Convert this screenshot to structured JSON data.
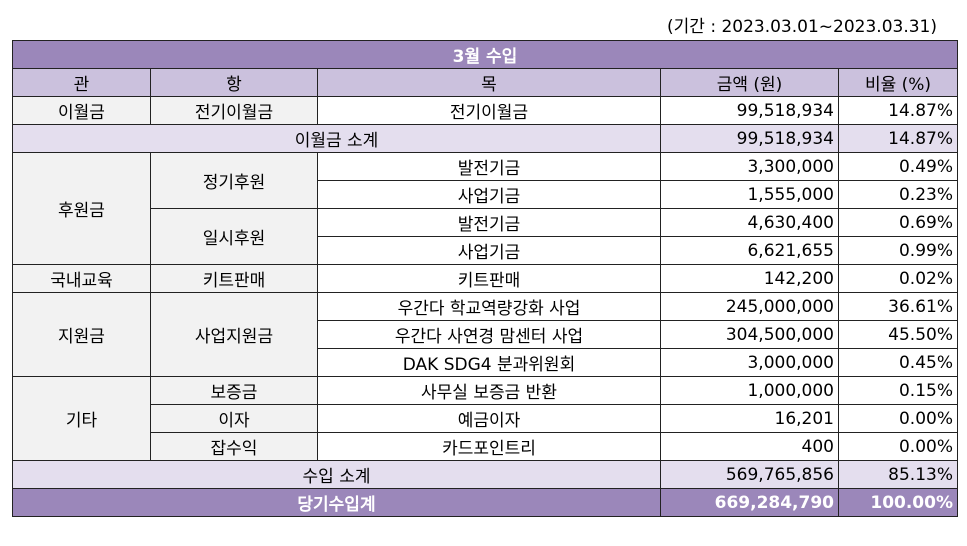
{
  "period": "(기간 : 2023.03.01~2023.03.31)",
  "table": {
    "title": "3월 수입",
    "headers": [
      "관",
      "항",
      "목",
      "금액 (원)",
      "비율 (%)"
    ],
    "sections": [
      {
        "gwan": "이월금",
        "items": [
          {
            "hang": "전기이월금",
            "entries": [
              {
                "mok": "전기이월금",
                "amount": "99,518,934",
                "ratio": "14.87%"
              }
            ]
          }
        ]
      },
      {
        "gwan": "후원금",
        "items": [
          {
            "hang": "정기후원",
            "entries": [
              {
                "mok": "발전기금",
                "amount": "3,300,000",
                "ratio": "0.49%"
              },
              {
                "mok": "사업기금",
                "amount": "1,555,000",
                "ratio": "0.23%"
              }
            ]
          },
          {
            "hang": "일시후원",
            "entries": [
              {
                "mok": "발전기금",
                "amount": "4,630,400",
                "ratio": "0.69%"
              },
              {
                "mok": "사업기금",
                "amount": "6,621,655",
                "ratio": "0.99%"
              }
            ]
          }
        ]
      },
      {
        "gwan": "국내교육",
        "items": [
          {
            "hang": "키트판매",
            "entries": [
              {
                "mok": "키트판매",
                "amount": "142,200",
                "ratio": "0.02%"
              }
            ]
          }
        ]
      },
      {
        "gwan": "지원금",
        "items": [
          {
            "hang": "사업지원금",
            "entries": [
              {
                "mok": "우간다 학교역량강화 사업",
                "amount": "245,000,000",
                "ratio": "36.61%"
              },
              {
                "mok": "우간다 사연경 맘센터 사업",
                "amount": "304,500,000",
                "ratio": "45.50%"
              },
              {
                "mok": "DAK SDG4 분과위원회",
                "amount": "3,000,000",
                "ratio": "0.45%"
              }
            ]
          }
        ]
      },
      {
        "gwan": "기타",
        "items": [
          {
            "hang": "보증금",
            "entries": [
              {
                "mok": "사무실 보증금 반환",
                "amount": "1,000,000",
                "ratio": "0.15%"
              }
            ]
          },
          {
            "hang": "이자",
            "entries": [
              {
                "mok": "예금이자",
                "amount": "16,201",
                "ratio": "0.00%"
              }
            ]
          },
          {
            "hang": "잡수익",
            "entries": [
              {
                "mok": "카드포인트리",
                "amount": "400",
                "ratio": "0.00%"
              }
            ]
          }
        ]
      }
    ],
    "carryover_subtotal": {
      "label": "이월금 소계",
      "amount": "99,518,934",
      "ratio": "14.87%"
    },
    "income_subtotal": {
      "label": "수입 소계",
      "amount": "569,765,856",
      "ratio": "85.13%"
    },
    "total": {
      "label": "당기수입계",
      "amount": "669,284,790",
      "ratio": "100.00%"
    }
  }
}
